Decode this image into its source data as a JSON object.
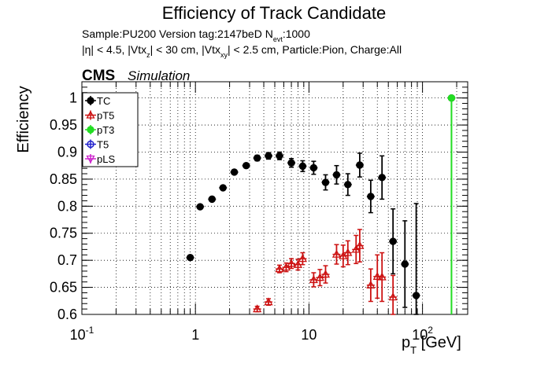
{
  "chart_data": {
    "type": "scatter",
    "title": "Efficiency of Track Candidate",
    "subtitle_lines": [
      "Sample:PU200   Version tag:2147beD  N_evt:1000",
      "|η| < 4.5, |Vtx_z| < 30 cm, |Vtx_xy| < 2.5 cm, Particle:Pion, Charge:All"
    ],
    "cms_label": "CMS",
    "simulation_label": "Simulation",
    "xlabel": "p_T [GeV]",
    "ylabel": "Efficiency",
    "x_scale": "log",
    "xlim": [
      0.1,
      250
    ],
    "ylim": [
      0.6,
      1.03
    ],
    "x_tick_labels": [
      "10^-1",
      "1",
      "10",
      "10^2"
    ],
    "y_tick_labels": [
      "0.6",
      "0.65",
      "0.7",
      "0.75",
      "0.8",
      "0.85",
      "0.9",
      "0.95",
      "1"
    ],
    "grid": true,
    "legend_position": "top-left",
    "series": [
      {
        "name": "TC",
        "color": "#000000",
        "marker": "filled-circle",
        "points": [
          {
            "x": 0.9,
            "y": 0.705,
            "err": 0.003
          },
          {
            "x": 1.1,
            "y": 0.799,
            "err": 0.003
          },
          {
            "x": 1.4,
            "y": 0.813,
            "err": 0.003
          },
          {
            "x": 1.75,
            "y": 0.834,
            "err": 0.003
          },
          {
            "x": 2.2,
            "y": 0.863,
            "err": 0.004
          },
          {
            "x": 2.8,
            "y": 0.875,
            "err": 0.004
          },
          {
            "x": 3.5,
            "y": 0.889,
            "err": 0.005
          },
          {
            "x": 4.4,
            "y": 0.893,
            "err": 0.006
          },
          {
            "x": 5.5,
            "y": 0.893,
            "err": 0.007
          },
          {
            "x": 7.0,
            "y": 0.88,
            "err": 0.008
          },
          {
            "x": 8.8,
            "y": 0.874,
            "err": 0.01
          },
          {
            "x": 11.0,
            "y": 0.871,
            "err": 0.012
          },
          {
            "x": 14.0,
            "y": 0.844,
            "err": 0.014
          },
          {
            "x": 17.5,
            "y": 0.858,
            "err": 0.017
          },
          {
            "x": 22.0,
            "y": 0.84,
            "err": 0.02
          },
          {
            "x": 28.0,
            "y": 0.876,
            "err": 0.022
          },
          {
            "x": 35.0,
            "y": 0.818,
            "err": 0.03
          },
          {
            "x": 44.0,
            "y": 0.853,
            "err": 0.04
          },
          {
            "x": 55.0,
            "y": 0.735,
            "err": 0.06
          },
          {
            "x": 70.0,
            "y": 0.693,
            "err": 0.08
          },
          {
            "x": 88.0,
            "y": 0.635,
            "err": 0.17
          },
          {
            "x": 180.0,
            "y": 1.0,
            "err": 0.0
          }
        ]
      },
      {
        "name": "pT5",
        "color": "#cc1111",
        "marker": "open-triangle",
        "points": [
          {
            "x": 3.5,
            "y": 0.61,
            "err": 0.005
          },
          {
            "x": 4.4,
            "y": 0.623,
            "err": 0.006
          },
          {
            "x": 5.5,
            "y": 0.684,
            "err": 0.007
          },
          {
            "x": 6.3,
            "y": 0.687,
            "err": 0.008
          },
          {
            "x": 7.0,
            "y": 0.694,
            "err": 0.009
          },
          {
            "x": 8.0,
            "y": 0.692,
            "err": 0.01
          },
          {
            "x": 8.8,
            "y": 0.703,
            "err": 0.011
          },
          {
            "x": 11.0,
            "y": 0.664,
            "err": 0.013
          },
          {
            "x": 12.5,
            "y": 0.668,
            "err": 0.015
          },
          {
            "x": 14.0,
            "y": 0.674,
            "err": 0.016
          },
          {
            "x": 17.5,
            "y": 0.711,
            "err": 0.018
          },
          {
            "x": 20.0,
            "y": 0.708,
            "err": 0.02
          },
          {
            "x": 22.0,
            "y": 0.714,
            "err": 0.022
          },
          {
            "x": 26.0,
            "y": 0.72,
            "err": 0.026
          },
          {
            "x": 28.0,
            "y": 0.727,
            "err": 0.03
          },
          {
            "x": 35.0,
            "y": 0.654,
            "err": 0.03
          },
          {
            "x": 40.0,
            "y": 0.67,
            "err": 0.04
          },
          {
            "x": 44.0,
            "y": 0.669,
            "err": 0.045
          },
          {
            "x": 55.0,
            "y": 0.632,
            "err": 0.04
          }
        ]
      },
      {
        "name": "pT3",
        "color": "#22dd22",
        "marker": "filled-circle",
        "points": [
          {
            "x": 180.0,
            "y": 1.0,
            "err": 0.0
          }
        ],
        "full_range_error_bar": true
      },
      {
        "name": "T5",
        "color": "#2222cc",
        "marker": "open-circle",
        "points": []
      },
      {
        "name": "pLS",
        "color": "#cc22cc",
        "marker": "open-triangle-down",
        "points": []
      }
    ]
  }
}
